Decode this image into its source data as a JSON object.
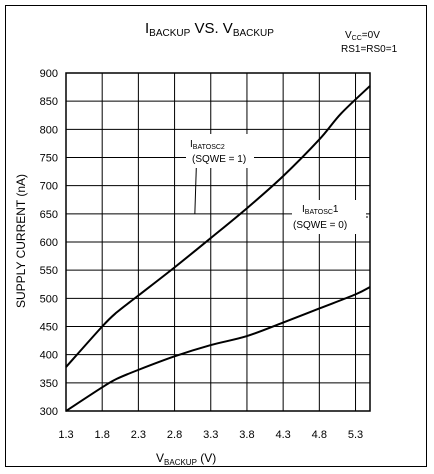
{
  "chart_data": {
    "type": "line",
    "title": {
      "main": "I",
      "main_sub": "BACKUP",
      "mid": " VS. V",
      "end_sub": "BACKUP"
    },
    "conditions": [
      {
        "main": "V",
        "sub": "CC",
        "rest": "=0V"
      },
      {
        "main": "RS1=RS0=1",
        "sub": "",
        "rest": ""
      }
    ],
    "ylabel": "SUPPLY CURRENT (nA)",
    "xlabel": {
      "main": "V",
      "sub": "BACKUP",
      "rest": " (V)"
    },
    "xlim": [
      1.3,
      5.5
    ],
    "ylim": [
      300,
      900
    ],
    "x_ticks": [
      "1.3",
      "1.8",
      "2.3",
      "2.8",
      "3.3",
      "3.8",
      "4.3",
      "4.8",
      "5.3"
    ],
    "y_ticks": [
      "900",
      "850",
      "800",
      "750",
      "700",
      "650",
      "600",
      "550",
      "500",
      "450",
      "400",
      "350",
      "300"
    ],
    "grid": true,
    "series": [
      {
        "name": "I_BATOSC2",
        "label": {
          "main": "I",
          "sub": "BATOSC2",
          "note": "(SQWE = 1)"
        },
        "x": [
          1.3,
          1.8,
          2.0,
          2.3,
          2.8,
          3.3,
          3.8,
          4.3,
          4.8,
          5.1,
          5.5
        ],
        "y": [
          378,
          450,
          475,
          505,
          555,
          607,
          660,
          717,
          782,
          828,
          877
        ]
      },
      {
        "name": "I_BATOSC1",
        "label": {
          "main": "I",
          "sub": "BATOSC",
          "rest": "1",
          "note": "(SQWE = 0)"
        },
        "x": [
          1.3,
          1.8,
          2.0,
          2.3,
          2.8,
          3.3,
          3.8,
          4.3,
          4.8,
          5.3,
          5.5
        ],
        "y": [
          300,
          342,
          357,
          373,
          397,
          417,
          433,
          457,
          482,
          507,
          520
        ]
      }
    ]
  }
}
